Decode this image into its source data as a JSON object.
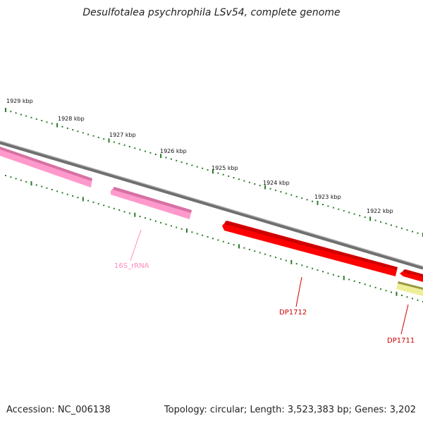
{
  "title": "Desulfotalea psychrophila LSv54, complete genome",
  "accession": "Accession: NC_006138",
  "summary": "Topology: circular; Length: 3,523,383 bp; Genes: 3,202",
  "colors": {
    "backbone": "#7a7a7a",
    "tick": "#2a7a2a",
    "rrna": "#ff99cc",
    "rrna_label": "#ff88bb",
    "cds": "#ff0000",
    "cds_label": "#cc0000",
    "other": "#eeee99"
  },
  "ticks": [
    {
      "label": "1929 kbp"
    },
    {
      "label": "1928 kbp"
    },
    {
      "label": "1927 kbp"
    },
    {
      "label": "1926 kbp"
    },
    {
      "label": "1925 kbp"
    },
    {
      "label": "1924 kbp"
    },
    {
      "label": "1923 kbp"
    },
    {
      "label": "1922 kbp"
    }
  ],
  "features": [
    {
      "label": "16S_rRNA",
      "type": "rRNA"
    },
    {
      "label": "DP1712",
      "type": "CDS"
    },
    {
      "label": "DP1711",
      "type": "CDS"
    }
  ]
}
